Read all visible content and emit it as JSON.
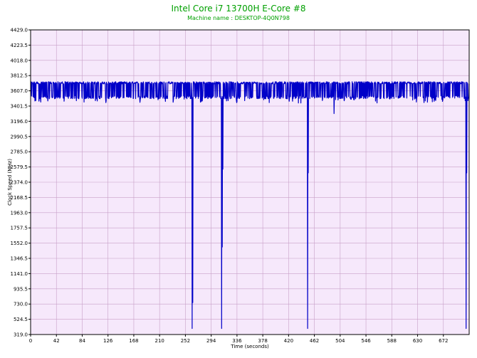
{
  "chart_data": {
    "type": "line",
    "title": "Intel Core i7 13700H E-Core #8",
    "subtitle": "Machine name : DESKTOP-4Q0N798",
    "xlabel": "Time (seconds)",
    "ylabel": "Clock Speed (MHz)",
    "xlim": [
      0,
      714
    ],
    "ylim": [
      319.0,
      4429.0
    ],
    "x_ticks": [
      0,
      42,
      84,
      126,
      168,
      210,
      252,
      294,
      336,
      378,
      420,
      462,
      504,
      546,
      588,
      630,
      672
    ],
    "y_ticks": [
      "319.0",
      "524.5",
      "730.0",
      "935.5",
      "1141.0",
      "1346.5",
      "1552.0",
      "1757.5",
      "1963.0",
      "2168.5",
      "2374.0",
      "2579.5",
      "2785.0",
      "2990.5",
      "3196.0",
      "3401.5",
      "3607.0",
      "3812.5",
      "4018.0",
      "4223.5",
      "4429.0"
    ],
    "grid": true,
    "legend": "none",
    "colors": {
      "line": "#0000c8",
      "plot_background": "#f6e8fb",
      "grid": "#c8a0c8",
      "title": "#00a000",
      "frame": "#000000"
    },
    "series": [
      {
        "baseline_high": 3700,
        "baseline_low": 3500,
        "dips": [
          {
            "x": 263,
            "y": 400
          },
          {
            "x": 264,
            "y": 750
          },
          {
            "x": 311,
            "y": 400
          },
          {
            "x": 312,
            "y": 1500
          },
          {
            "x": 313,
            "y": 2550
          },
          {
            "x": 451,
            "y": 400
          },
          {
            "x": 452,
            "y": 2500
          },
          {
            "x": 494,
            "y": 3300
          },
          {
            "x": 709,
            "y": 400
          },
          {
            "x": 710,
            "y": 2500
          }
        ]
      }
    ]
  }
}
